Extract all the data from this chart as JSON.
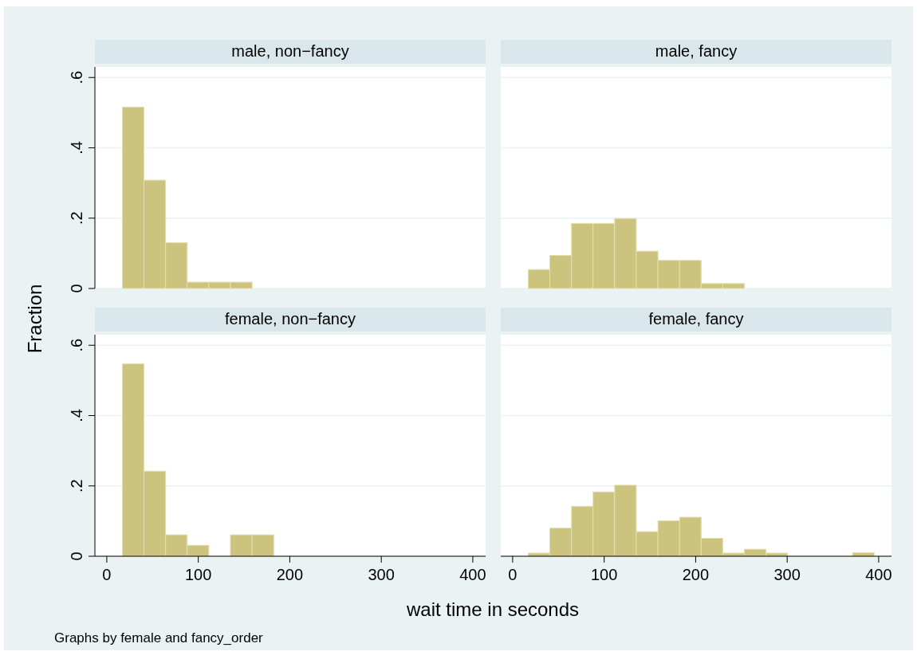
{
  "chart_data": [
    {
      "type": "histogram",
      "title": "male, non−fancy",
      "ylabel": "Fraction",
      "xlabel": "wait time in seconds",
      "annotations": [
        "Graphs by female and fancy_order"
      ],
      "color": "#cbc37e",
      "grid": "y",
      "tick_labels": "y",
      "xlim": [
        -13,
        414
      ],
      "ylim": [
        0,
        0.63
      ],
      "xticks": [
        0,
        100,
        200,
        300,
        400
      ],
      "yticks": [
        {
          "value": 0,
          "label": "0"
        },
        {
          "value": 0.2,
          "label": ".2"
        },
        {
          "value": 0.4,
          "label": ".4"
        },
        {
          "value": 0.6,
          "label": ".6"
        }
      ],
      "bins": [
        17,
        40.6,
        64.3,
        87.9,
        111.5,
        135.1,
        158.8,
        182.4,
        206,
        229.6,
        253.3,
        276.9,
        300.5,
        324.1,
        347.8,
        371.4,
        395
      ],
      "values": [
        0.516,
        0.308,
        0.13,
        0.018,
        0.018,
        0.018,
        0,
        0,
        0,
        0,
        0,
        0,
        0,
        0,
        0,
        0
      ]
    },
    {
      "type": "histogram",
      "title": "male, fancy",
      "color": "#cbc37e",
      "grid": "y",
      "tick_labels": false,
      "xlim": [
        -13,
        414
      ],
      "ylim": [
        0,
        0.63
      ],
      "xticks": [
        0,
        100,
        200,
        300,
        400
      ],
      "yticks": [
        0,
        0.2,
        0.4,
        0.6
      ],
      "bins": [
        17,
        40.6,
        64.3,
        87.9,
        111.5,
        135.1,
        158.8,
        182.4,
        206,
        229.6,
        253.3,
        276.9,
        300.5,
        324.1,
        347.8,
        371.4,
        395
      ],
      "values": [
        0.054,
        0.094,
        0.185,
        0.185,
        0.199,
        0.106,
        0.08,
        0.08,
        0.014,
        0.014,
        0,
        0,
        0,
        0,
        0,
        0
      ]
    },
    {
      "type": "histogram",
      "title": "female, non−fancy",
      "color": "#cbc37e",
      "grid": "y",
      "xlim": [
        -13,
        414
      ],
      "ylim": [
        0,
        0.63
      ],
      "xticks": [
        0,
        100,
        200,
        300,
        400
      ],
      "yticks": [
        {
          "value": 0,
          "label": "0"
        },
        {
          "value": 0.2,
          "label": ".2"
        },
        {
          "value": 0.4,
          "label": ".4"
        },
        {
          "value": 0.6,
          "label": ".6"
        }
      ],
      "bins": [
        17,
        40.6,
        64.3,
        87.9,
        111.5,
        135.1,
        158.8,
        182.4,
        206,
        229.6,
        253.3,
        276.9,
        300.5,
        324.1,
        347.8,
        371.4,
        395
      ],
      "values": [
        0.547,
        0.242,
        0.061,
        0.031,
        0,
        0.061,
        0.061,
        0,
        0,
        0,
        0,
        0,
        0,
        0,
        0,
        0
      ]
    },
    {
      "type": "histogram",
      "title": "female, fancy",
      "color": "#cbc37e",
      "grid": "y",
      "tick_labels": "x",
      "xlim": [
        -13,
        414
      ],
      "ylim": [
        0,
        0.63
      ],
      "xticks": [
        0,
        100,
        200,
        300,
        400
      ],
      "yticks": [
        0,
        0.2,
        0.4,
        0.6
      ],
      "bins": [
        17,
        40.6,
        64.3,
        87.9,
        111.5,
        135.1,
        158.8,
        182.4,
        206,
        229.6,
        253.3,
        276.9,
        300.5,
        324.1,
        347.8,
        371.4,
        395
      ],
      "values": [
        0.009,
        0.08,
        0.142,
        0.183,
        0.202,
        0.07,
        0.101,
        0.111,
        0.051,
        0.009,
        0.02,
        0.009,
        0,
        0,
        0,
        0.01
      ]
    }
  ]
}
